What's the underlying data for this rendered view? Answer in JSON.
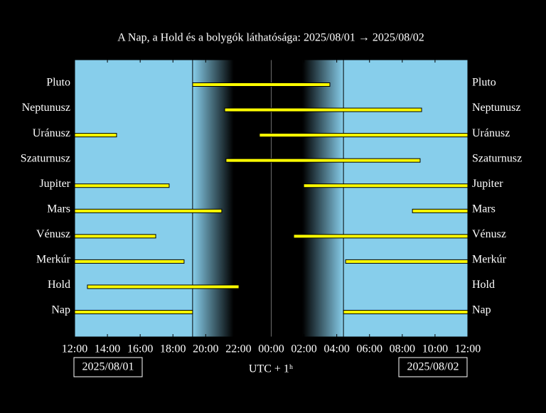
{
  "chart_data": {
    "type": "timeline",
    "title": "A Nap, a Hold és a bolygók láthatósága: 2025/08/01 → 2025/08/02",
    "x_label": "UTC + 1ʰ",
    "start_date": "2025/08/01",
    "end_date": "2025/08/02",
    "xlim": [
      0,
      24
    ],
    "xticks": [
      {
        "value": 0,
        "label": "12:00"
      },
      {
        "value": 2,
        "label": "14:00"
      },
      {
        "value": 4,
        "label": "16:00"
      },
      {
        "value": 6,
        "label": "18:00"
      },
      {
        "value": 8,
        "label": "20:00"
      },
      {
        "value": 10,
        "label": "22:00"
      },
      {
        "value": 12,
        "label": "00:00"
      },
      {
        "value": 14,
        "label": "02:00"
      },
      {
        "value": 16,
        "label": "04:00"
      },
      {
        "value": 18,
        "label": "06:00"
      },
      {
        "value": 20,
        "label": "08:00"
      },
      {
        "value": 22,
        "label": "10:00"
      },
      {
        "value": 24,
        "label": "12:00"
      }
    ],
    "color": "#ffff00",
    "series": [
      {
        "name": "Pluto",
        "segments": [
          [
            7.2,
            15.58
          ]
        ]
      },
      {
        "name": "Neptunusz",
        "segments": [
          [
            9.16,
            21.18
          ]
        ]
      },
      {
        "name": "Uránusz",
        "segments": [
          [
            0,
            2.56
          ],
          [
            11.28,
            24
          ]
        ]
      },
      {
        "name": "Szaturnusz",
        "segments": [
          [
            9.24,
            21.09
          ]
        ]
      },
      {
        "name": "Jupiter",
        "segments": [
          [
            0,
            5.77
          ],
          [
            13.98,
            24
          ]
        ]
      },
      {
        "name": "Mars",
        "segments": [
          [
            0,
            8.98
          ],
          [
            20.62,
            24
          ]
        ]
      },
      {
        "name": "Vénusz",
        "segments": [
          [
            0,
            4.95
          ],
          [
            13.37,
            24
          ]
        ]
      },
      {
        "name": "Merkúr",
        "segments": [
          [
            0,
            6.68
          ],
          [
            16.54,
            24
          ]
        ]
      },
      {
        "name": "Hold",
        "segments": [
          [
            0.78,
            10.03
          ]
        ]
      },
      {
        "name": "Nap",
        "segments": [
          [
            0,
            7.2
          ],
          [
            16.41,
            24
          ]
        ]
      }
    ]
  }
}
